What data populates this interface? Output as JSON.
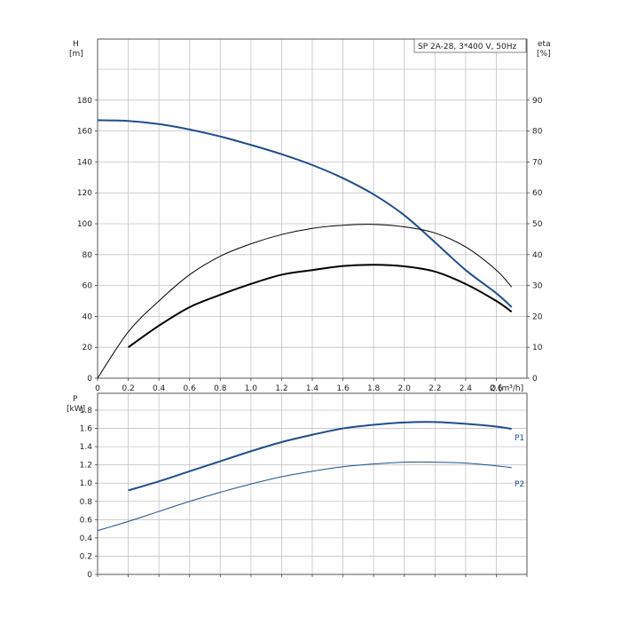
{
  "chart_data": [
    {
      "type": "line",
      "title": "SP 2A-28, 3*400 V, 50Hz",
      "xlabel": "Q [m³/h]",
      "ylabel_left_name": "H",
      "ylabel_left_unit": "[m]",
      "ylabel_right_name": "eta",
      "ylabel_right_unit": "[%]",
      "xlim": [
        0,
        2.8
      ],
      "ylim": [
        0,
        200
      ],
      "ylim_right": [
        0,
        100
      ],
      "grid": true,
      "x_ticks": [
        "0",
        "0.2",
        "0.4",
        "0.6",
        "0.8",
        "1.0",
        "1.2",
        "1.4",
        "1.6",
        "1.8",
        "2.0",
        "2.2",
        "2.4",
        "2.6"
      ],
      "y_ticks": [
        "0",
        "20",
        "40",
        "60",
        "80",
        "100",
        "120",
        "140",
        "160",
        "180"
      ],
      "y_ticks_right": [
        "0",
        "10",
        "20",
        "30",
        "40",
        "50",
        "60",
        "70",
        "80",
        "90"
      ],
      "series": [
        {
          "color": "#1f4e8c",
          "axis": "left",
          "width": 2,
          "x": [
            0,
            0.2,
            0.4,
            0.6,
            0.8,
            1.0,
            1.2,
            1.4,
            1.6,
            1.8,
            2.0,
            2.2,
            2.4,
            2.6,
            2.7
          ],
          "y": [
            167,
            166.5,
            164.5,
            161,
            156.5,
            151,
            145,
            138,
            129.5,
            119,
            105.5,
            88,
            70,
            55,
            46
          ]
        },
        {
          "color": "#000000",
          "axis": "right",
          "width": 1,
          "x": [
            0,
            0.2,
            0.4,
            0.6,
            0.8,
            1.0,
            1.2,
            1.4,
            1.6,
            1.8,
            2.0,
            2.2,
            2.4,
            2.6,
            2.7
          ],
          "y": [
            0,
            15,
            25,
            33.5,
            39.5,
            43.5,
            46.5,
            48.5,
            49.5,
            49.8,
            49,
            47,
            42.5,
            35,
            29.5
          ]
        },
        {
          "color": "#000000",
          "axis": "right",
          "width": 2,
          "x": [
            0.2,
            0.4,
            0.6,
            0.8,
            1.0,
            1.2,
            1.4,
            1.6,
            1.8,
            2.0,
            2.2,
            2.4,
            2.6,
            2.7
          ],
          "y": [
            10,
            17,
            23,
            27,
            30.5,
            33.5,
            35,
            36.3,
            36.7,
            36.2,
            34.5,
            30.5,
            25,
            21.5
          ]
        }
      ]
    },
    {
      "type": "line",
      "xlabel": "",
      "ylabel_name": "P",
      "ylabel_unit": "[kW]",
      "xlim": [
        0,
        2.8
      ],
      "ylim": [
        0,
        1.8
      ],
      "grid": true,
      "y_ticks": [
        "0",
        "0.2",
        "0.4",
        "0.6",
        "0.8",
        "1.0",
        "1.2",
        "1.4",
        "1.6",
        "1.8"
      ],
      "series": [
        {
          "name": "P1",
          "color": "#1f4e8c",
          "width": 2,
          "x": [
            0.2,
            0.4,
            0.6,
            0.8,
            1.0,
            1.2,
            1.4,
            1.6,
            1.8,
            2.0,
            2.2,
            2.4,
            2.6,
            2.7
          ],
          "y": [
            0.92,
            1.02,
            1.13,
            1.24,
            1.35,
            1.45,
            1.53,
            1.6,
            1.64,
            1.665,
            1.67,
            1.65,
            1.62,
            1.595
          ]
        },
        {
          "name": "P2",
          "color": "#1f4e8c",
          "width": 1,
          "x": [
            0,
            0.2,
            0.4,
            0.6,
            0.8,
            1.0,
            1.2,
            1.4,
            1.6,
            1.8,
            2.0,
            2.2,
            2.4,
            2.6,
            2.7
          ],
          "y": [
            0.48,
            0.58,
            0.69,
            0.8,
            0.9,
            0.99,
            1.07,
            1.13,
            1.18,
            1.21,
            1.23,
            1.23,
            1.22,
            1.19,
            1.17
          ]
        }
      ]
    }
  ]
}
